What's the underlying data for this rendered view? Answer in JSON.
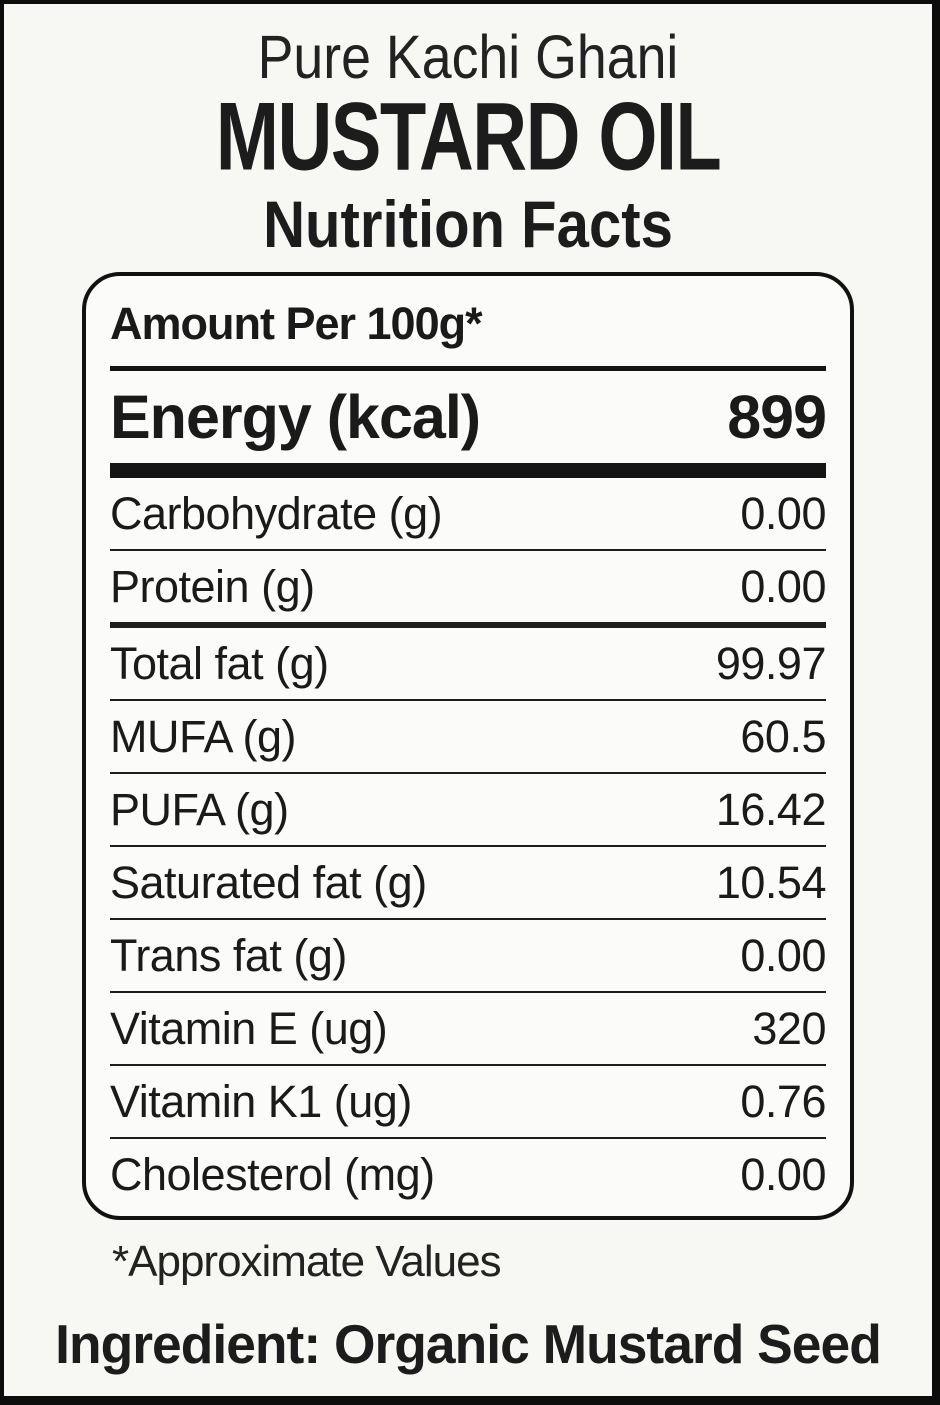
{
  "header": {
    "subtitle": "Pure Kachi Ghani",
    "product_name": "MUSTARD OIL",
    "panel_title": "Nutrition Facts"
  },
  "panel": {
    "amount_label": "Amount Per 100g*",
    "energy": {
      "label": "Energy (kcal)",
      "value": "899"
    },
    "rows": [
      {
        "label": "Carbohydrate (g)",
        "value": "0.00",
        "divider_after": "thin"
      },
      {
        "label": "Protein (g)",
        "value": "0.00",
        "divider_after": "medium"
      },
      {
        "label": "Total fat (g)",
        "value": "99.97",
        "divider_after": "thin"
      },
      {
        "label": "MUFA (g)",
        "value": "60.5",
        "divider_after": "thin"
      },
      {
        "label": "PUFA (g)",
        "value": "16.42",
        "divider_after": "thin"
      },
      {
        "label": "Saturated fat (g)",
        "value": "10.54",
        "divider_after": "thin"
      },
      {
        "label": "Trans fat (g)",
        "value": "0.00",
        "divider_after": "thin"
      },
      {
        "label": "Vitamin E (ug)",
        "value": "320",
        "divider_after": "thin"
      },
      {
        "label": "Vitamin K1 (ug)",
        "value": "0.76",
        "divider_after": "thin"
      },
      {
        "label": "Cholesterol (mg)",
        "value": "0.00",
        "divider_after": "none"
      }
    ]
  },
  "footnote": "*Approximate Values",
  "ingredient_line": "Ingredient: Organic Mustard Seed",
  "colors": {
    "text": "#1a1a1a",
    "background": "#f7f7f4",
    "panel_background": "#fbfbf9",
    "border": "#0d0d0d"
  }
}
